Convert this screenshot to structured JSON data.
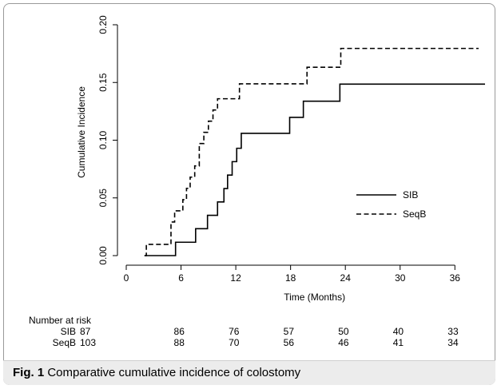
{
  "chart_data": {
    "type": "line",
    "xlabel": "Time (Months)",
    "ylabel": "Cumulative Incidence",
    "xlim": [
      0,
      40
    ],
    "ylim": [
      0,
      0.2
    ],
    "x_ticks": [
      "0",
      "6",
      "12",
      "18",
      "24",
      "30",
      "36"
    ],
    "x_tick_values": [
      0,
      6,
      12,
      18,
      24,
      30,
      36
    ],
    "y_ticks": [
      "0.00",
      "0.05",
      "0.10",
      "0.15",
      "0.20"
    ],
    "y_tick_values": [
      0,
      0.05,
      0.1,
      0.15,
      0.2
    ],
    "grid": false,
    "legend_position": "center-right",
    "series": [
      {
        "name": "SIB",
        "line_style": "solid",
        "x": [
          2.0,
          5.4,
          7.6,
          8.9,
          10.0,
          10.7,
          11.1,
          11.6,
          12.1,
          12.6,
          17.9,
          19.4,
          23.4,
          39.3
        ],
        "y": [
          0.0,
          0.0116,
          0.0233,
          0.0349,
          0.0465,
          0.0581,
          0.0698,
          0.0814,
          0.093,
          0.1059,
          0.1198,
          0.1338,
          0.1486,
          0.1486
        ]
      },
      {
        "name": "SeqB",
        "line_style": "dashed",
        "x": [
          2.0,
          2.2,
          4.9,
          5.3,
          6.2,
          6.6,
          7.0,
          7.5,
          8.0,
          8.5,
          9.0,
          9.5,
          10.0,
          12.4,
          19.8,
          23.5,
          38.6
        ],
        "y": [
          0.0,
          0.0097,
          0.0291,
          0.0388,
          0.0485,
          0.0583,
          0.068,
          0.0777,
          0.0971,
          0.1068,
          0.1165,
          0.1262,
          0.1359,
          0.1488,
          0.1632,
          0.1795,
          0.1795
        ]
      }
    ]
  },
  "risk_table": {
    "title": "Number at risk",
    "rows": [
      {
        "label": "SIB",
        "values": [
          "87",
          "86",
          "76",
          "57",
          "50",
          "40",
          "33"
        ]
      },
      {
        "label": "SeqB",
        "values": [
          "103",
          "88",
          "70",
          "56",
          "46",
          "41",
          "34"
        ]
      }
    ]
  },
  "caption": {
    "fig": "Fig. 1",
    "text": "Comparative cumulative incidence of colostomy"
  }
}
